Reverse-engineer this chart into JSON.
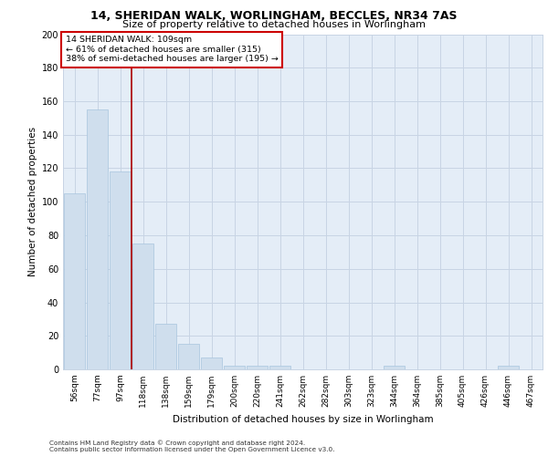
{
  "title1": "14, SHERIDAN WALK, WORLINGHAM, BECCLES, NR34 7AS",
  "title2": "Size of property relative to detached houses in Worlingham",
  "xlabel": "Distribution of detached houses by size in Worlingham",
  "ylabel": "Number of detached properties",
  "categories": [
    "56sqm",
    "77sqm",
    "97sqm",
    "118sqm",
    "138sqm",
    "159sqm",
    "179sqm",
    "200sqm",
    "220sqm",
    "241sqm",
    "262sqm",
    "282sqm",
    "303sqm",
    "323sqm",
    "344sqm",
    "364sqm",
    "385sqm",
    "405sqm",
    "426sqm",
    "446sqm",
    "467sqm"
  ],
  "values": [
    105,
    155,
    118,
    75,
    27,
    15,
    7,
    2,
    2,
    2,
    0,
    0,
    0,
    0,
    2,
    0,
    0,
    0,
    0,
    2,
    0
  ],
  "bar_color": "#cfdeed",
  "bar_edgecolor": "#a8c4de",
  "grid_color": "#c8d4e4",
  "plot_bg_color": "#e4edf7",
  "annotation_box_color": "#cc0000",
  "vline_color": "#aa0000",
  "annotation_text": "14 SHERIDAN WALK: 109sqm\n← 61% of detached houses are smaller (315)\n38% of semi-detached houses are larger (195) →",
  "footnote1": "Contains HM Land Registry data © Crown copyright and database right 2024.",
  "footnote2": "Contains public sector information licensed under the Open Government Licence v3.0.",
  "ylim": [
    0,
    200
  ],
  "yticks": [
    0,
    20,
    40,
    60,
    80,
    100,
    120,
    140,
    160,
    180,
    200
  ]
}
